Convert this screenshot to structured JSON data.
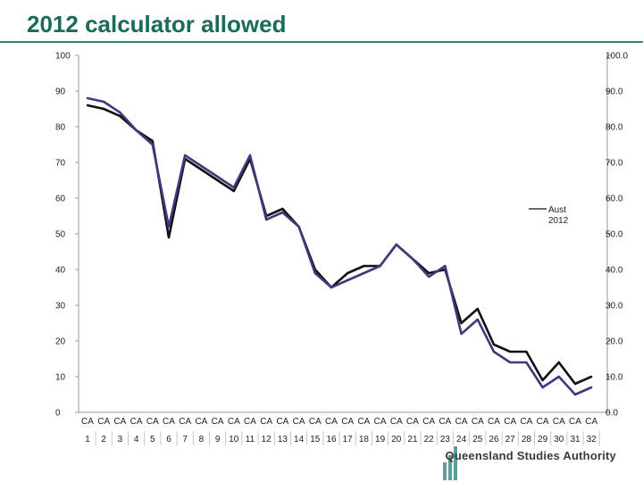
{
  "title": "2012 calculator allowed",
  "logo_text": "Queensland Studies Authority",
  "colors": {
    "title": "#1a6b5a",
    "aust_line": "#111111",
    "series2_line": "#3d3a7e",
    "axis": "#9a9a9a"
  },
  "chart_data": {
    "type": "line",
    "title": "2012 calculator allowed",
    "xlabel": "",
    "ylabel": "",
    "ylim": [
      0,
      100
    ],
    "y_ticks_left": [
      "0",
      "10",
      "20",
      "30",
      "40",
      "50",
      "60",
      "70",
      "80",
      "90",
      "100"
    ],
    "y_ticks_right": [
      "0.0",
      "10.0",
      "20.0",
      "30.0",
      "40.0",
      "50.0",
      "60.0",
      "70.0",
      "80.0",
      "90.0",
      "100.0"
    ],
    "category_prefix": "CA",
    "categories": [
      "1",
      "2",
      "3",
      "4",
      "5",
      "6",
      "7",
      "8",
      "9",
      "10",
      "11",
      "12",
      "13",
      "14",
      "15",
      "16",
      "17",
      "18",
      "19",
      "20",
      "21",
      "22",
      "23",
      "24",
      "25",
      "26",
      "27",
      "28",
      "29",
      "30",
      "31",
      "32"
    ],
    "legend": {
      "position": "middle-right",
      "entries": [
        "Aust",
        "2012"
      ]
    },
    "series": [
      {
        "name": "Aust",
        "color": "#111111",
        "values": [
          86,
          85,
          83,
          79,
          76,
          49,
          71,
          68,
          65,
          62,
          71,
          55,
          57,
          52,
          40,
          35,
          39,
          41,
          41,
          47,
          43,
          39,
          40,
          25,
          29,
          19,
          17,
          17,
          9,
          14,
          8,
          10
        ]
      },
      {
        "name": "2012",
        "color": "#3d3a7e",
        "values": [
          88,
          87,
          84,
          79,
          75,
          52,
          72,
          69,
          66,
          63,
          72,
          54,
          56,
          52,
          39,
          35,
          37,
          39,
          41,
          47,
          43,
          38,
          41,
          22,
          26,
          17,
          14,
          14,
          7,
          10,
          5,
          7
        ]
      }
    ]
  }
}
